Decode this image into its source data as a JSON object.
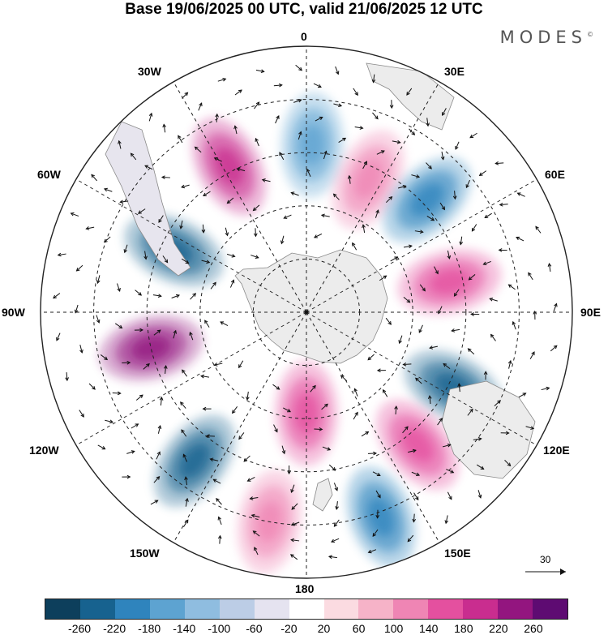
{
  "title": "Base 19/06/2025 00 UTC, valid 21/06/2025 12 UTC",
  "logo": "MODES",
  "logo_mark": "©",
  "longitude_labels": {
    "lon_0": "0",
    "lon_30e": "30E",
    "lon_60e": "60E",
    "lon_90e": "90E",
    "lon_120e": "120E",
    "lon_150e": "150E",
    "lon_180": "180",
    "lon_150w": "150W",
    "lon_120w": "120W",
    "lon_90w": "90W",
    "lon_60w": "60W",
    "lon_30w": "30W"
  },
  "vector_reference": "30",
  "colorbar": {
    "colors": [
      "#0d3f5c",
      "#17628f",
      "#2f84bd",
      "#5da3d1",
      "#8fbde0",
      "#bccde6",
      "#e5e3f0",
      "#ffffff",
      "#fbdbe1",
      "#f6b3c8",
      "#ef85b4",
      "#e4509f",
      "#c92d8f",
      "#93157f",
      "#5e0b72"
    ],
    "ticks": [
      "-260",
      "-220",
      "-180",
      "-140",
      "-100",
      "-60",
      "-20",
      "20",
      "60",
      "100",
      "140",
      "180",
      "220",
      "260"
    ]
  },
  "anomaly_centers": [
    {
      "label": "pink 30W",
      "color": "#c92d8f",
      "lon": -28,
      "lat_ring": 0.62
    },
    {
      "label": "blue 0",
      "color": "#5da3d1",
      "lon": 2,
      "lat_ring": 0.63
    },
    {
      "label": "pink 25E",
      "color": "#ef85b4",
      "lon": 25,
      "lat_ring": 0.55
    },
    {
      "label": "blue 45E",
      "color": "#2f84bd",
      "lon": 47,
      "lat_ring": 0.62
    },
    {
      "label": "pink 75E",
      "color": "#e4509f",
      "lon": 78,
      "lat_ring": 0.55
    },
    {
      "label": "blue 65W",
      "color": "#17628f",
      "lon": -65,
      "lat_ring": 0.55
    },
    {
      "label": "pink 100W",
      "color": "#93157f",
      "lon": -103,
      "lat_ring": 0.6
    },
    {
      "label": "blue 115E",
      "color": "#17628f",
      "lon": 117,
      "lat_ring": 0.62
    },
    {
      "label": "pink 140E",
      "color": "#e4509f",
      "lon": 140,
      "lat_ring": 0.65
    },
    {
      "label": "blue 155E",
      "color": "#2f84bd",
      "lon": 160,
      "lat_ring": 0.82
    },
    {
      "label": "pink 170W",
      "color": "#ef85b4",
      "lon": -170,
      "lat_ring": 0.8
    },
    {
      "label": "blue 145W",
      "color": "#17628f",
      "lon": -143,
      "lat_ring": 0.7
    },
    {
      "label": "pink 178E",
      "color": "#e4509f",
      "lon": 180,
      "lat_ring": 0.38
    }
  ]
}
